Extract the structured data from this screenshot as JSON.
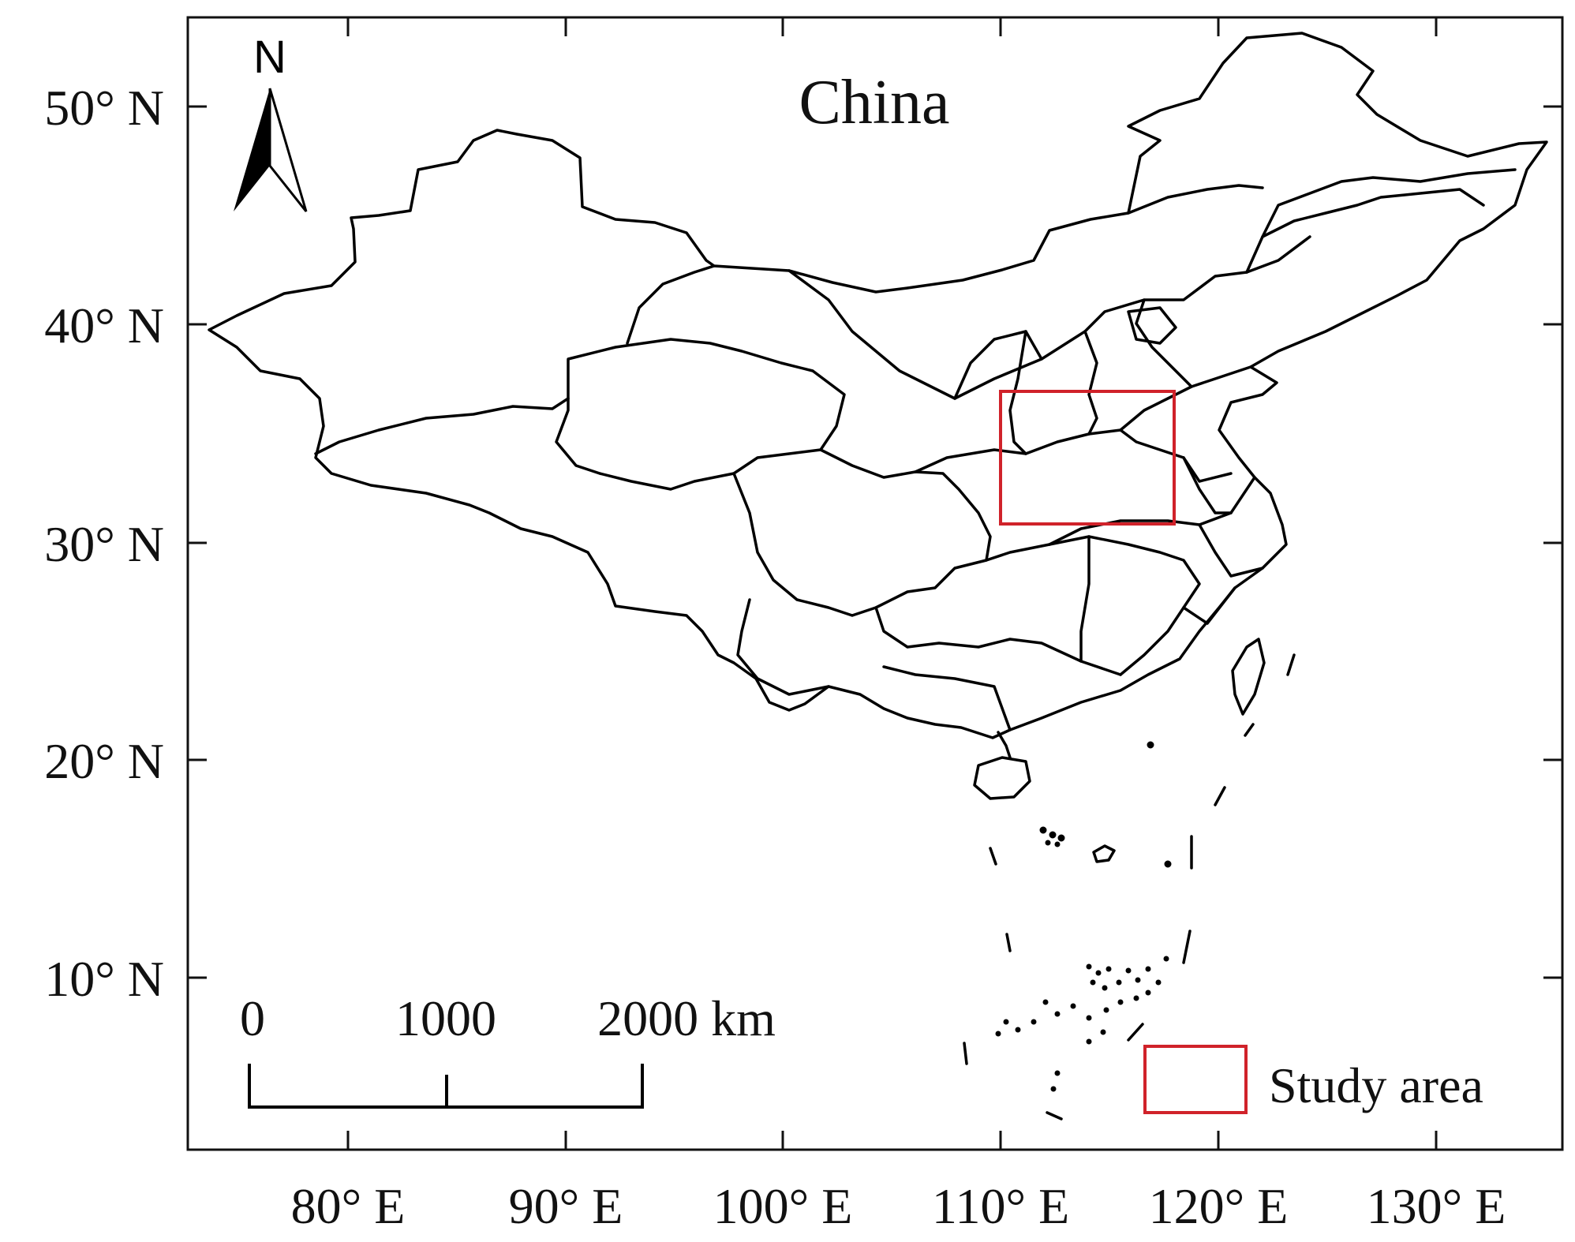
{
  "title": "China",
  "x_axis_ticks": [
    "80° E",
    "90° E",
    "100° E",
    "110° E",
    "120° E",
    "130° E"
  ],
  "y_axis_ticks": [
    "50° N",
    "40° N",
    "30° N",
    "20° N",
    "10° N"
  ],
  "north_arrow": {
    "label": "N",
    "icon": "north-arrow-icon"
  },
  "scale_bar": {
    "labels": [
      "0",
      "1000",
      "2000 km"
    ]
  },
  "legend": {
    "label": "Study area",
    "color": "#d0222a"
  },
  "colors": {
    "study_area": "#d0222a",
    "borders": "#000000"
  }
}
